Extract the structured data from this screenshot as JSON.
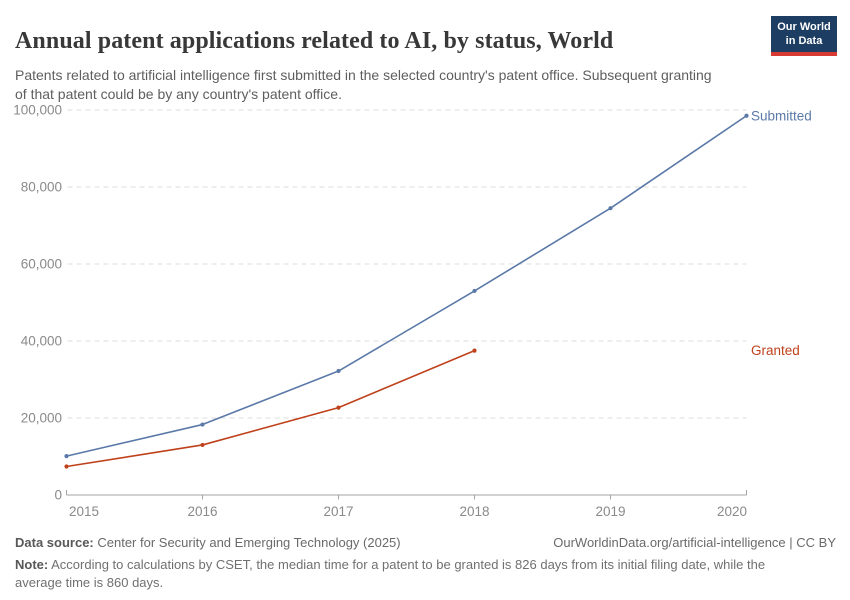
{
  "header": {
    "title": "Annual patent applications related to AI, by status, World",
    "subtitle": "Patents related to artificial intelligence first submitted in the selected country's patent office. Subsequent granting of that patent could be by any country's patent office.",
    "logo": {
      "line1": "Our World",
      "line2": "in Data",
      "bg_color": "#1d3d63",
      "accent_color": "#d73a32"
    }
  },
  "chart_data": {
    "type": "line",
    "title": "Annual patent applications related to AI, by status, World",
    "x": [
      2015,
      2016,
      2017,
      2018,
      2019,
      2020
    ],
    "series": [
      {
        "name": "Submitted",
        "color": "#5b79a8",
        "x": [
          2015,
          2016,
          2017,
          2018,
          2019,
          2020
        ],
        "values": [
          10100,
          18300,
          32200,
          53000,
          74500,
          98500
        ]
      },
      {
        "name": "Granted",
        "color": "#bf411b",
        "x": [
          2015,
          2016,
          2017,
          2018
        ],
        "values": [
          7400,
          13000,
          22700,
          37500
        ]
      }
    ],
    "xlabel": "",
    "ylabel": "",
    "ylim": [
      0,
      100000
    ],
    "yticks": [
      0,
      20000,
      40000,
      60000,
      80000,
      100000
    ],
    "ytick_labels": [
      "0",
      "20,000",
      "40,000",
      "60,000",
      "80,000",
      "100,000"
    ],
    "xticks": [
      2015,
      2016,
      2017,
      2018,
      2019,
      2020
    ],
    "grid": "horizontal-dashed",
    "legend_position": "end-of-line-labels",
    "grid_color": "#dcdcdc",
    "axis_color": "#a3a3a3",
    "tick_label_color": "#8a8a8a"
  },
  "footer": {
    "datasource_label": "Data source:",
    "datasource_value": " Center for Security and Emerging Technology (2025)",
    "attribution": "OurWorldinData.org/artificial-intelligence | CC BY",
    "note_label": "Note:",
    "note_value": " According to calculations by CSET, the median time for a patent to be granted is 826 days from its initial filing date, while the average time is 860 days."
  }
}
